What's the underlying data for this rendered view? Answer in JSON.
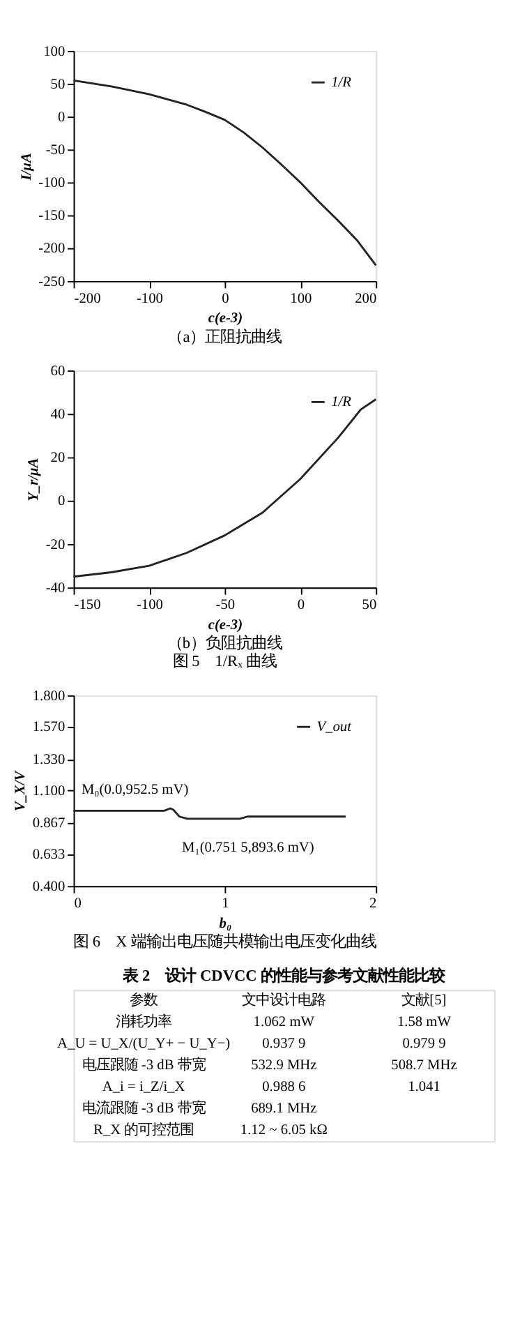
{
  "chart_data": [
    {
      "type": "line",
      "xlabel": "c(e-3)",
      "ylabel": "I/μA",
      "annotations": [
        "（a）正阻抗曲线"
      ],
      "xlim": [
        -200,
        200
      ],
      "xticks": [
        -200,
        -100,
        0,
        100,
        200
      ],
      "ylim": [
        -250,
        100
      ],
      "yticks": [
        -250,
        -200,
        -150,
        -100,
        -50,
        0,
        50,
        100
      ],
      "legend": "top right",
      "grid": false,
      "series": [
        {
          "name": "1/R",
          "color": "#222222",
          "x": [
            -200,
            -150,
            -100,
            -50,
            -25,
            0,
            25,
            50,
            75,
            100,
            125,
            150,
            175,
            200
          ],
          "values": [
            55,
            46,
            34,
            18,
            7,
            -5,
            -24,
            -47,
            -73,
            -100,
            -130,
            -158,
            -188,
            -226
          ]
        }
      ]
    },
    {
      "type": "line",
      "xlabel": "c(e-3)",
      "ylabel": "Y_r/μA",
      "annotations": [
        "（b）负阻抗曲线",
        "图 5　1/Rₓ 曲线"
      ],
      "xlim": [
        -150,
        50
      ],
      "xticks": [
        -150,
        -100,
        -50,
        0,
        50
      ],
      "ylim": [
        -40,
        60
      ],
      "yticks": [
        -40,
        -20,
        0,
        20,
        40,
        60
      ],
      "legend": "top right",
      "grid": false,
      "series": [
        {
          "name": "1/R",
          "color": "#222222",
          "x": [
            -150,
            -125,
            -100,
            -75,
            -50,
            -25,
            0,
            25,
            40,
            50
          ],
          "values": [
            -35,
            -33,
            -30,
            -24,
            -16,
            -5.5,
            10,
            29,
            42,
            46.7
          ]
        }
      ]
    },
    {
      "type": "line",
      "xlabel": "b₀",
      "ylabel": "V_X/V",
      "annotations": [
        {
          "text": "M₀(0.0,952.5 mV)",
          "x": 0,
          "y": 0.9525
        },
        {
          "text": "M₁(0.751 5,893.6 mV)",
          "x": 0.7515,
          "y": 0.8936
        },
        "图 6　X 端输出电压随共模输出电压变化曲线"
      ],
      "xlim": [
        0,
        2
      ],
      "xticks": [
        {
          "value": 0,
          "label": "0"
        },
        {
          "value": 1,
          "label": "1"
        },
        {
          "value": 2,
          "label": "2"
        }
      ],
      "ylim": [
        0.4,
        1.8
      ],
      "yticks": [
        {
          "value": 0.4,
          "label": "0.400"
        },
        0.633,
        0.867,
        {
          "value": 1.1,
          "label": "1.100"
        },
        {
          "value": 1.33,
          "label": "1.330"
        },
        {
          "value": 1.57,
          "label": "1.570"
        },
        {
          "value": 1.8,
          "label": "1.800"
        }
      ],
      "legend": "top right",
      "grid": false,
      "series": [
        {
          "name": "V_out",
          "color": "#222222",
          "x": [
            0,
            0.6,
            0.64,
            0.66,
            0.7,
            0.7515,
            1.1,
            1.15,
            1.8
          ],
          "values": [
            0.9525,
            0.9525,
            0.97,
            0.96,
            0.91,
            0.8936,
            0.8936,
            0.91,
            0.91
          ]
        }
      ]
    },
    {
      "type": "other",
      "title": "表 2　设计 CDVCC 的性能与参考文献性能比较",
      "categories": [
        "参数",
        "文中设计电路",
        "文献[5]"
      ],
      "y_categories": [
        "消耗功率",
        "A_U = U_X/(U_Y+ − U_Y−)",
        "电压跟随 -3 dB 带宽",
        "A_i = i_Z/i_X",
        "电流跟随 -3 dB 带宽",
        "R_X 的可控范围"
      ],
      "cell_labels": [
        [
          "1.062 mW",
          "1.58 mW"
        ],
        [
          "0.937 9",
          "0.979 9"
        ],
        [
          "532.9 MHz",
          "508.7 MHz"
        ],
        [
          "0.988 6",
          "1.041"
        ],
        [
          "689.1 MHz",
          null
        ],
        [
          "1.12 ~ 6.05 kΩ",
          null
        ]
      ]
    }
  ]
}
